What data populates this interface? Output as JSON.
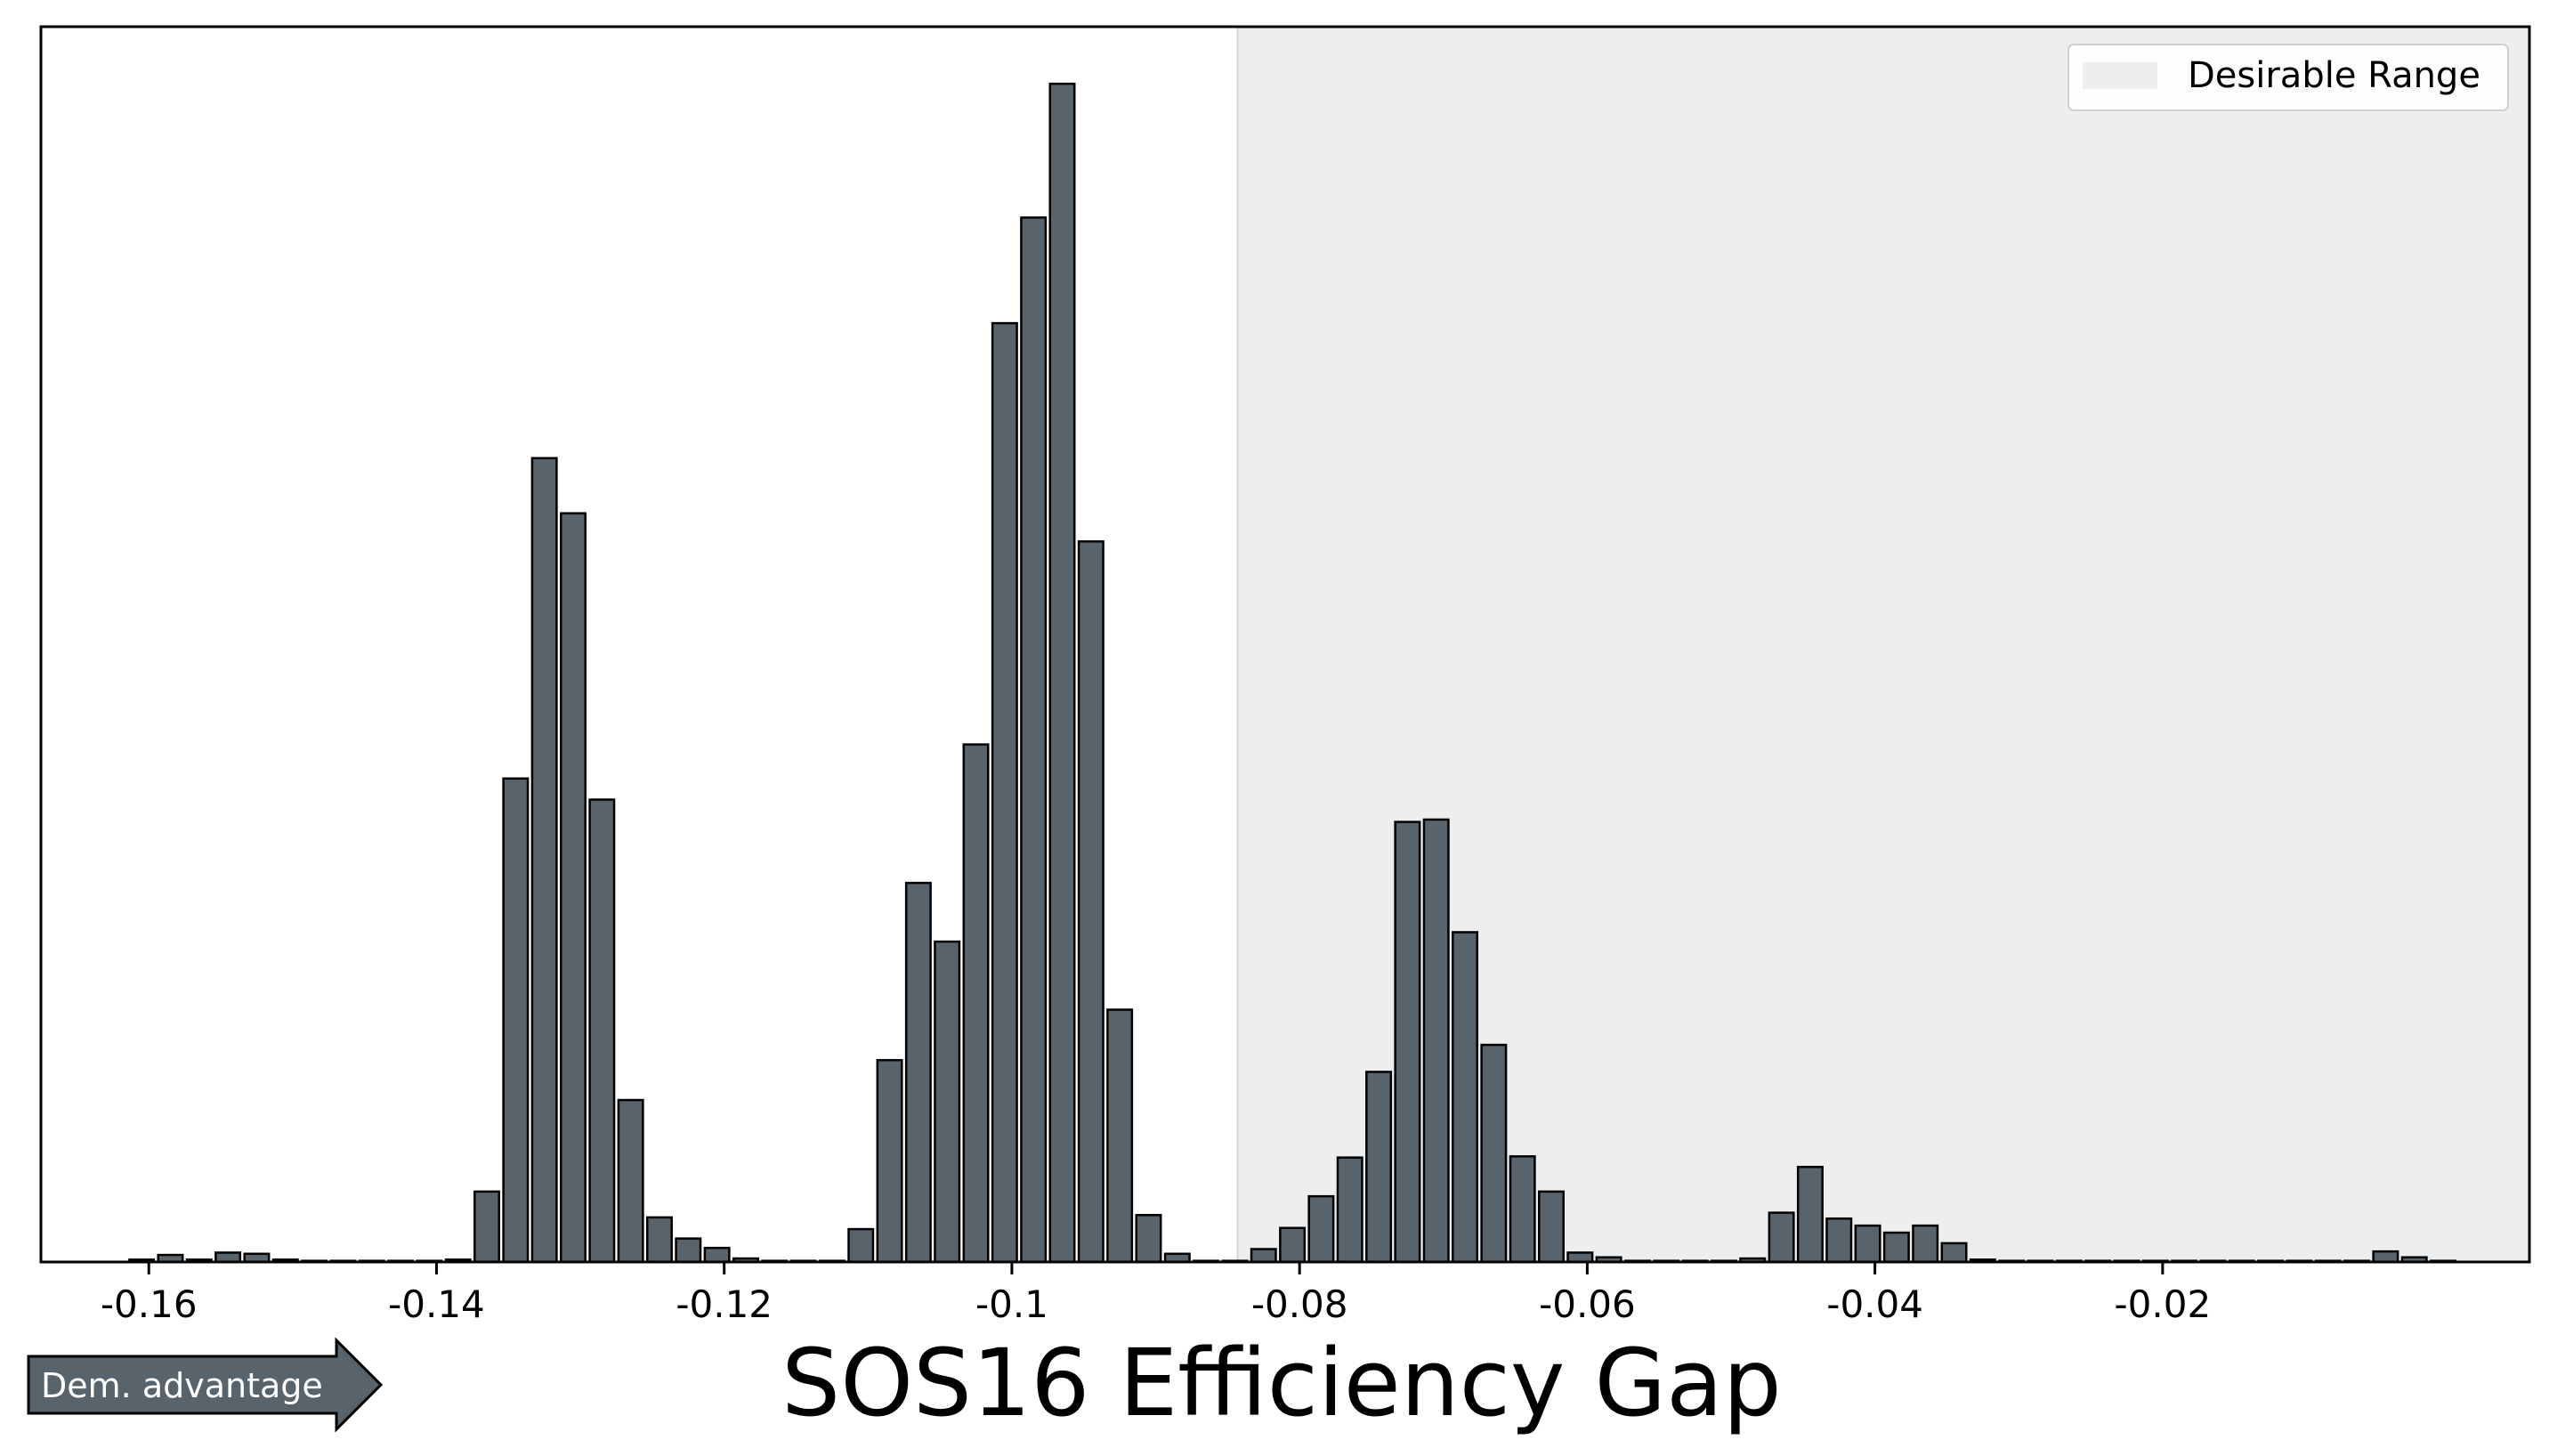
{
  "chart_data": {
    "type": "bar",
    "xlabel": "SOS16 Efficiency Gap",
    "ylabel": "",
    "xlim": [
      -0.1675,
      0.0055
    ],
    "ylim": [
      0,
      1000
    ],
    "x_ticks": [
      -0.16,
      -0.14,
      -0.12,
      -0.1,
      -0.08,
      -0.06,
      -0.04,
      -0.02
    ],
    "x_tick_labels": [
      "-0.16",
      "-0.14",
      "-0.12",
      "-0.1",
      "-0.08",
      "-0.06",
      "-0.04",
      "-0.02"
    ],
    "y_ticks_shown": false,
    "grid": false,
    "bar_width": 0.0017,
    "bar_color": "#59636b",
    "bar_edge_color": "#000000",
    "bins_start": -0.1605,
    "bins_step": 0.002,
    "values": [
      2,
      6,
      2,
      8,
      7,
      2,
      1,
      1,
      1,
      1,
      1,
      2,
      60,
      412,
      685,
      638,
      394,
      138,
      38,
      20,
      12,
      3,
      1,
      1,
      1,
      28,
      172,
      323,
      273,
      441,
      800,
      890,
      1004,
      614,
      215,
      40,
      7,
      1,
      1,
      11,
      29,
      56,
      89,
      162,
      375,
      377,
      281,
      185,
      90,
      60,
      8,
      4,
      1,
      1,
      1,
      1,
      3,
      42,
      81,
      37,
      31,
      25,
      31,
      16,
      2,
      1,
      1,
      1,
      1,
      1,
      1,
      1,
      1,
      1,
      1,
      1,
      1,
      1,
      9,
      4,
      1
    ],
    "shaded_region": {
      "label": "Desirable Range",
      "from": -0.0843,
      "to": 0.0055,
      "color": "#eceef0"
    },
    "legend": {
      "position": "top-right",
      "entries": [
        "Desirable Range"
      ]
    },
    "annotation": {
      "text": "Dem. advantage",
      "direction": "right",
      "color": "#59636b"
    }
  }
}
